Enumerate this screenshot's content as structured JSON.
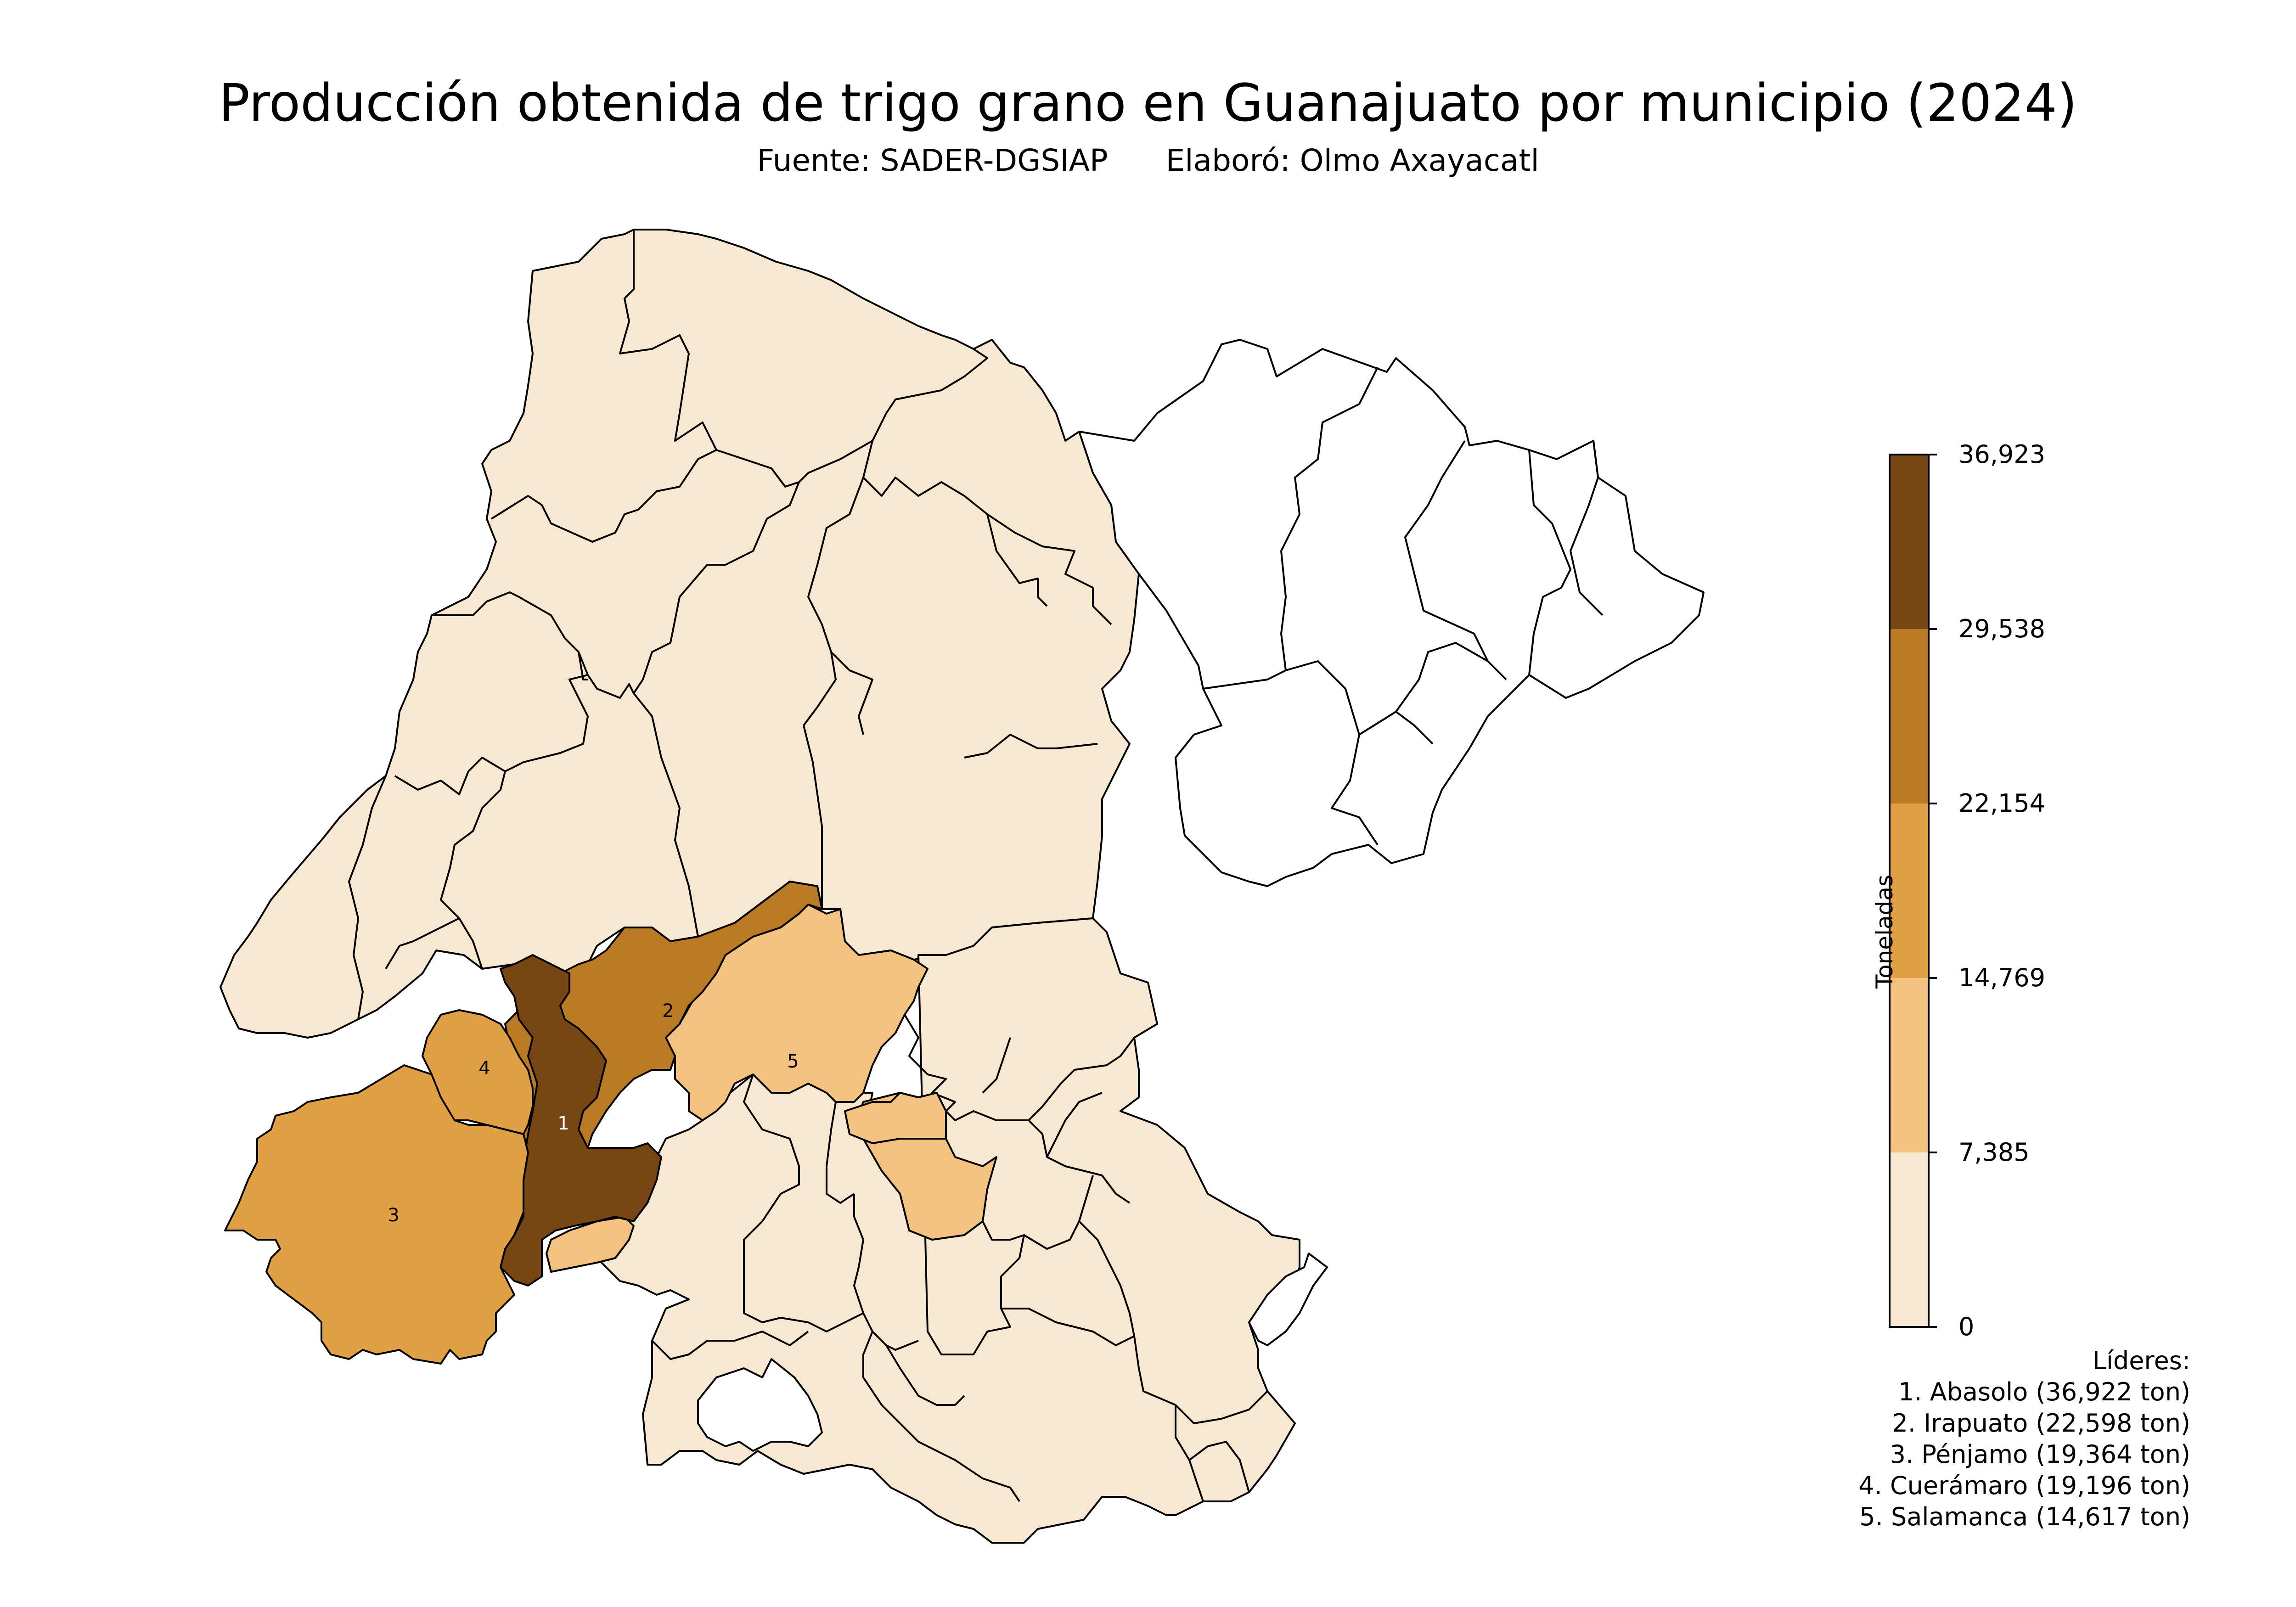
{
  "header": {
    "title": "Producción obtenida de trigo grano en Guanajuato por municipio (2024)",
    "subtitle_source": "Fuente: SADER-DGSIAP",
    "subtitle_author": "Elaboró: Olmo Axayacatl"
  },
  "colorbar": {
    "label": "Toneladas",
    "ticks": [
      "0",
      "7,385",
      "14,769",
      "22,154",
      "29,538",
      "36,923"
    ],
    "colors": [
      "#f8e8d2",
      "#f2c27e",
      "#e0a043",
      "#b97a23",
      "#774614"
    ]
  },
  "map": {
    "no_data_color": "#ffffff",
    "border_color": "#000000",
    "highlight_labels": [
      "1",
      "2",
      "3",
      "4",
      "5"
    ]
  },
  "leaders": {
    "title": "Líderes:",
    "items": [
      "1. Abasolo (36,922 ton)",
      "2. Irapuato (22,598 ton)",
      "3. Pénjamo (19,364 ton)",
      "4. Cuerámaro (19,196 ton)",
      "5. Salamanca (14,617 ton)"
    ]
  }
}
